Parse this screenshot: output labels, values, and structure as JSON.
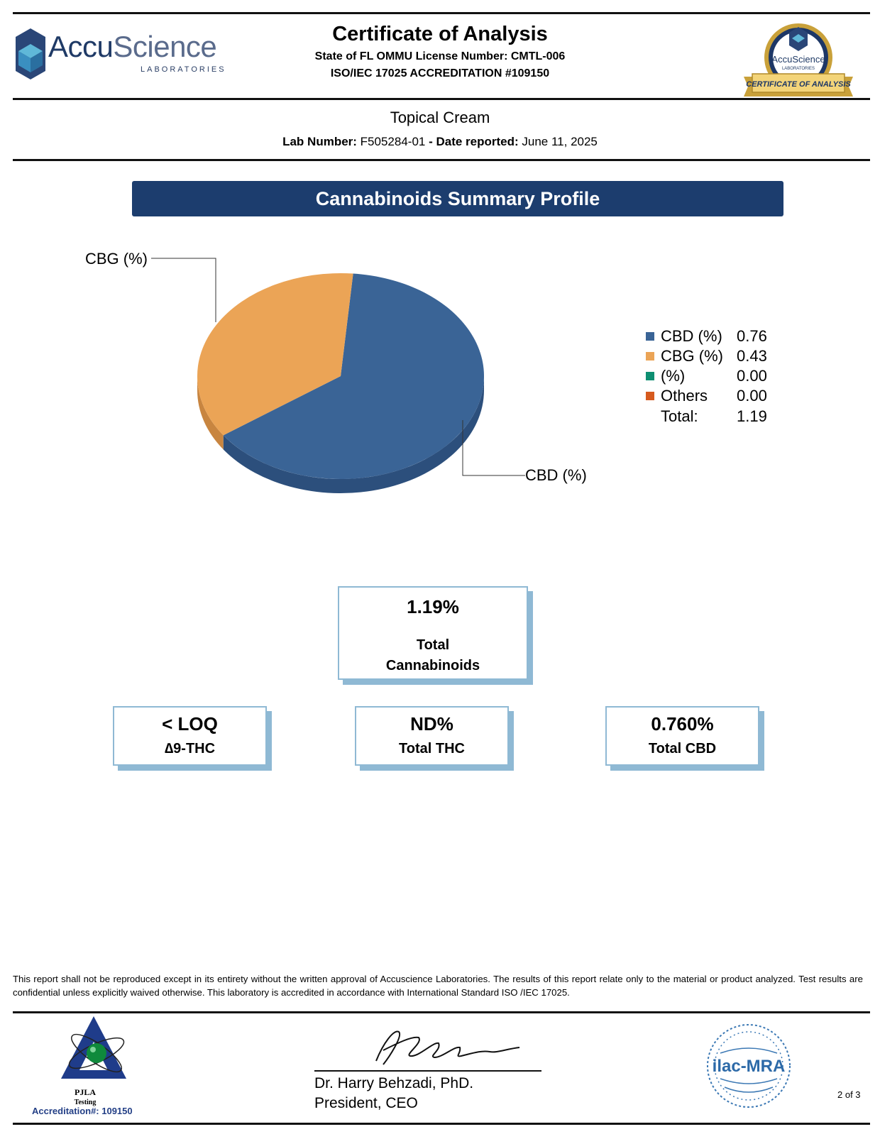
{
  "header": {
    "logo_brand_a": "Accu",
    "logo_brand_b": "Science",
    "logo_sub": "LABORATORIES",
    "title": "Certificate of Analysis",
    "license": "State of FL OMMU License Number: CMTL-006",
    "accreditation": "ISO/IEC 17025 ACCREDITATION #109150",
    "seal_brand": "AccuScience",
    "seal_sub": "LABORATORIES",
    "seal_ribbon": "CERTIFICATE OF ANALYSIS"
  },
  "product": {
    "name": "Topical Cream",
    "lab_number_label": "Lab Number:",
    "lab_number": "F505284-01",
    "separator": " - ",
    "date_label": "Date reported:",
    "date": "June 11, 2025"
  },
  "section_title": "Cannabinoids Summary Profile",
  "chart_data": {
    "type": "pie",
    "title": "Cannabinoids Summary Profile",
    "slices": [
      {
        "label": "CBD (%)",
        "value": 0.76,
        "color": "#3a6496",
        "side_color": "#2c4f7c"
      },
      {
        "label": "CBG (%)",
        "value": 0.43,
        "color": "#eba456",
        "side_color": "#c88540"
      },
      {
        "label": " (%)",
        "value": 0.0,
        "color": "#0e8f72",
        "side_color": "#0e8f72"
      },
      {
        "label": "Others",
        "value": 0.0,
        "color": "#d65a1e",
        "side_color": "#d65a1e"
      }
    ],
    "legend": [
      {
        "label": "CBD (%)",
        "value": "0.76",
        "color": "#3a6496"
      },
      {
        "label": "CBG (%)",
        "value": "0.43",
        "color": "#eba456"
      },
      {
        "label": " (%)",
        "value": "0.00",
        "color": "#0e8f72"
      },
      {
        "label": "Others",
        "value": "0.00",
        "color": "#d65a1e"
      }
    ],
    "total_label": "Total:",
    "total_value": "1.19",
    "callouts": [
      "CBG (%)",
      "CBD (%)"
    ],
    "legend_position": "right"
  },
  "summary": {
    "total": {
      "value": "1.19%",
      "label_line1": "Total",
      "label_line2": "Cannabinoids"
    },
    "d9thc": {
      "value": "< LOQ",
      "label": "∆9-THC"
    },
    "total_thc": {
      "value": "ND%",
      "label": "Total THC"
    },
    "total_cbd": {
      "value": "0.760%",
      "label": "Total CBD"
    }
  },
  "footer": {
    "disclaimer": "This report shall not be reproduced except in its entirety without the written approval of Accuscience Laboratories. The results of this report relate only to the material or product analyzed. Test results are confidential unless explicitly waived otherwise. This laboratory is accredited in accordance with International Standard ISO /IEC 17025.",
    "pjla_name": "PJLA",
    "pjla_sub": "Testing",
    "pjla_accreditation": "Accreditation#:  109150",
    "signer_name": "Dr. Harry Behzadi, PhD.",
    "signer_title": "President, CEO",
    "ilac_text": "ilac-MRA",
    "page": "2 of 3"
  }
}
